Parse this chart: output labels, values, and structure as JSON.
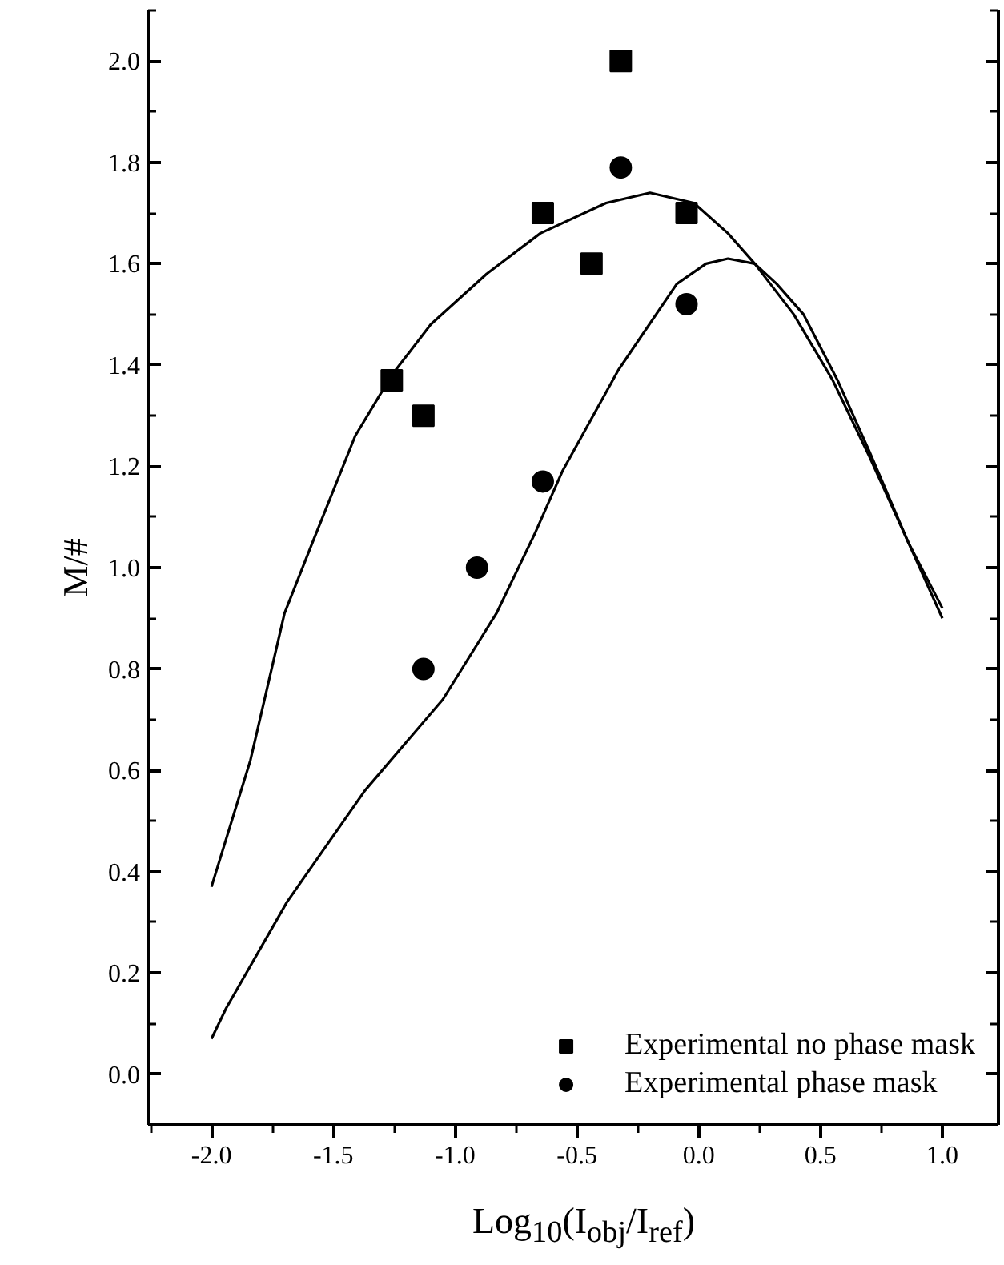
{
  "chart_data": {
    "type": "scatter",
    "xlabel": "Log$_{10}$(I$_{obj}$/I$_{ref}$)",
    "ylabel": "M/#",
    "xlim": [
      -2.26,
      1.23
    ],
    "ylim": [
      -0.1,
      2.1
    ],
    "xticks": [
      {
        "value": -2,
        "label": "-2.0"
      },
      {
        "value": -1.5,
        "label": "-1.5"
      },
      {
        "value": -1,
        "label": "-1.0"
      },
      {
        "value": -0.5,
        "label": "-0.5"
      },
      {
        "value": 0,
        "label": "0.0"
      },
      {
        "value": 0.5,
        "label": "0.5"
      },
      {
        "value": 1,
        "label": "1.0"
      }
    ],
    "yticks": [
      {
        "value": 0,
        "label": "0.0"
      },
      {
        "value": 0.2,
        "label": "0.2"
      },
      {
        "value": 0.4,
        "label": "0.4"
      },
      {
        "value": 0.6,
        "label": "0.6"
      },
      {
        "value": 0.8,
        "label": "0.8"
      },
      {
        "value": 1.0,
        "label": "1.0"
      },
      {
        "value": 1.2,
        "label": "1.2"
      },
      {
        "value": 1.4,
        "label": "1.4"
      },
      {
        "value": 1.6,
        "label": "1.6"
      },
      {
        "value": 1.8,
        "label": "1.8"
      },
      {
        "value": 2.0,
        "label": "2.0"
      }
    ],
    "grid": false,
    "legend": "bottom right",
    "series": [
      {
        "name": "Experimental no phase mask",
        "marker": "square",
        "color": "#000000",
        "x": [
          -1.26,
          -1.13,
          -0.64,
          -0.44,
          -0.32,
          -0.05
        ],
        "values": [
          1.37,
          1.3,
          1.7,
          1.6,
          2.0,
          1.7
        ]
      },
      {
        "name": "Experimental phase mask",
        "marker": "circle",
        "color": "#000000",
        "x": [
          -1.13,
          -0.91,
          -0.64,
          -0.32,
          -0.05
        ],
        "values": [
          0.8,
          1.0,
          1.17,
          1.79,
          1.52
        ]
      },
      {
        "type": "line",
        "marker": "none",
        "line_style": "solid",
        "color": "#000000",
        "x": [
          -2.0,
          -1.84,
          -1.7,
          -1.585,
          -1.41,
          -1.26,
          -1.1,
          -0.87,
          -0.65,
          -0.38,
          -0.2,
          -0.02,
          0.12,
          0.23,
          0.39,
          0.55,
          0.7,
          0.86,
          1.0
        ],
        "values": [
          0.37,
          0.62,
          0.91,
          1.05,
          1.26,
          1.38,
          1.48,
          1.58,
          1.66,
          1.72,
          1.74,
          1.72,
          1.66,
          1.6,
          1.5,
          1.37,
          1.22,
          1.05,
          0.92
        ]
      },
      {
        "type": "line",
        "marker": "none",
        "line_style": "solid",
        "color": "#000000",
        "x": [
          -2.0,
          -1.94,
          -1.69,
          -1.37,
          -1.05,
          -0.83,
          -0.67,
          -0.56,
          -0.33,
          -0.09,
          0.03,
          0.12,
          0.23,
          0.32,
          0.43,
          0.57,
          0.7,
          0.86,
          1.0
        ],
        "values": [
          0.07,
          0.13,
          0.34,
          0.56,
          0.74,
          0.91,
          1.07,
          1.19,
          1.39,
          1.56,
          1.6,
          1.61,
          1.6,
          1.56,
          1.5,
          1.37,
          1.23,
          1.05,
          0.9
        ]
      }
    ]
  }
}
